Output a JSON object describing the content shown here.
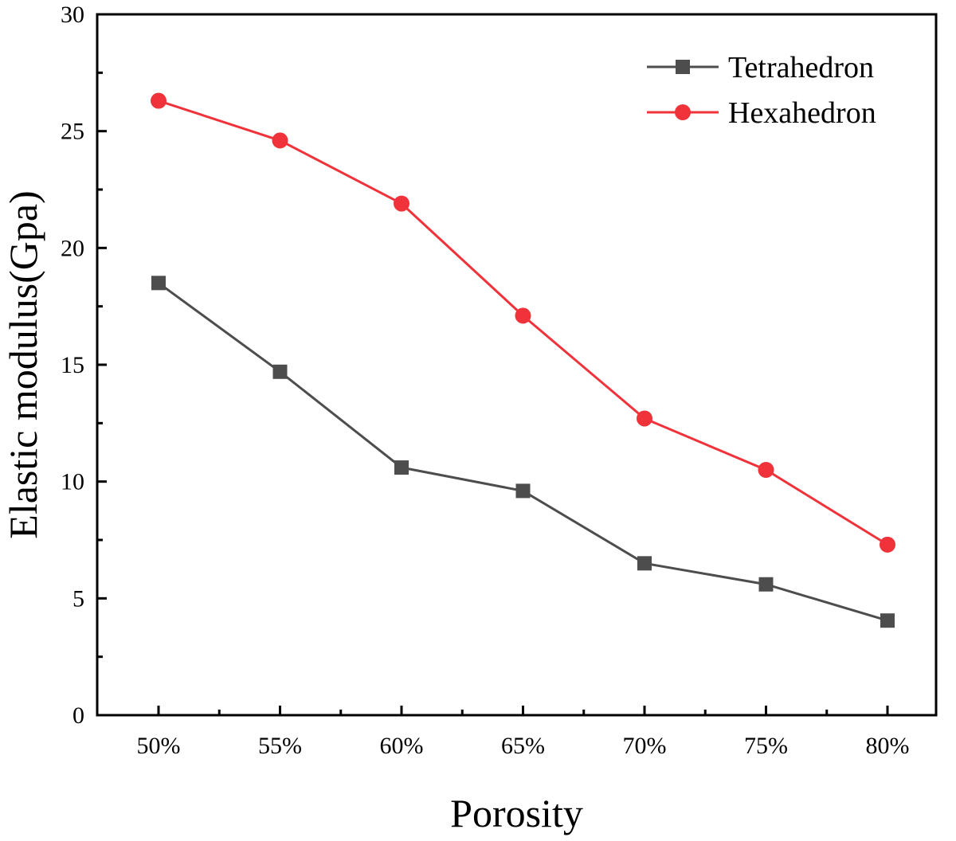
{
  "chart_data": {
    "type": "line",
    "xlabel": "Porosity",
    "ylabel": "Elastic modulus(Gpa)",
    "categories": [
      "50%",
      "55%",
      "60%",
      "65%",
      "70%",
      "75%",
      "80%"
    ],
    "ylim": [
      0,
      30
    ],
    "yticks": [
      "0",
      "5",
      "10",
      "15",
      "20",
      "25",
      "30"
    ],
    "grid": false,
    "legend_position": "top-right",
    "series": [
      {
        "name": "Tetrahedron",
        "color": "#4d4d4d",
        "marker": "square",
        "values": [
          18.5,
          14.7,
          10.6,
          9.6,
          6.5,
          5.6,
          4.05
        ]
      },
      {
        "name": "Hexahedron",
        "color": "#f0333a",
        "marker": "circle",
        "values": [
          26.3,
          24.6,
          21.9,
          17.1,
          12.7,
          10.5,
          7.3
        ]
      }
    ]
  }
}
